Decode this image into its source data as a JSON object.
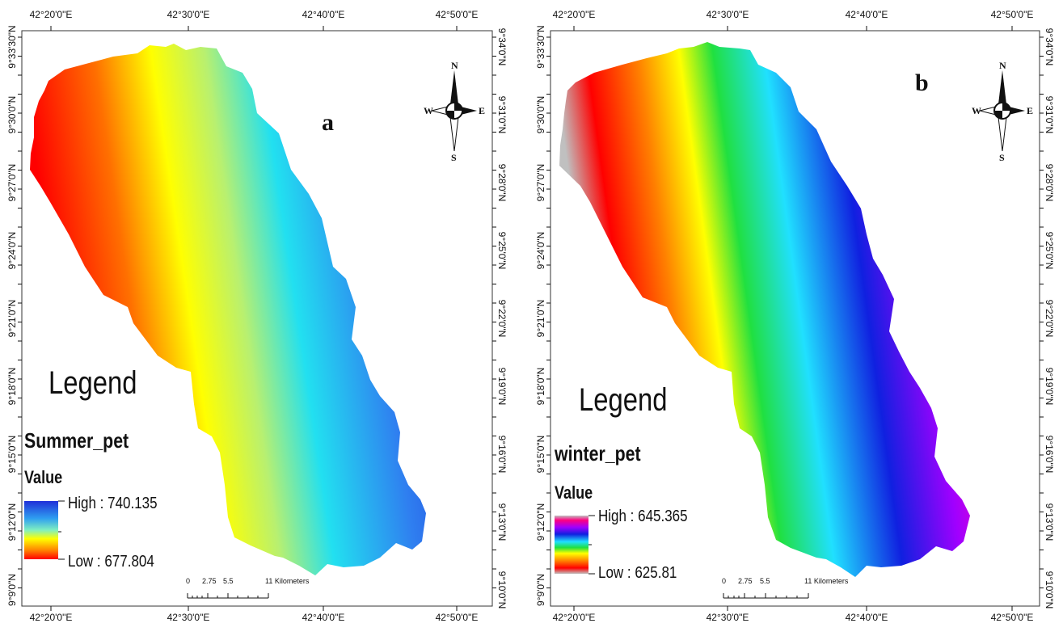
{
  "maps": [
    {
      "id": "a",
      "panel_letter": "a",
      "legend_title": "Legend",
      "layer_name": "Summer_pet",
      "value_label": "Value",
      "high_label": "High : 740.135",
      "low_label": "Low : 677.804",
      "ramp_colors": [
        "#1f2fd8",
        "#2f7ff0",
        "#22d8f0",
        "#b8f070",
        "#ffff00",
        "#ffa000",
        "#ff0000"
      ],
      "lon_ticks": [
        "42°20'0\"E",
        "42°30'0\"E",
        "42°40'0\"E",
        "42°50'0\"E"
      ],
      "lat_ticks_left": [
        "9°33'30\"N",
        "9°30'0\"N",
        "9°27'0\"N",
        "9°24'0\"N",
        "9°21'0\"N",
        "9°18'0\"N",
        "9°15'0\"N",
        "9°12'0\"N",
        "9°9'0\"N"
      ],
      "lat_ticks_right": [
        "9°34'0\"N",
        "9°31'0\"N",
        "9°28'0\"N",
        "9°25'0\"N",
        "9°22'0\"N",
        "9°19'0\"N",
        "9°16'0\"N",
        "9°13'0\"N",
        "9°10'0\"N"
      ],
      "scale_labels": [
        "0",
        "2.75",
        "5.5",
        "11 Kilometers"
      ],
      "compass": {
        "n": "N",
        "s": "S",
        "e": "E",
        "w": "W"
      }
    },
    {
      "id": "b",
      "panel_letter": "b",
      "legend_title": "Legend",
      "layer_name": "winter_pet",
      "value_label": "Value",
      "high_label": "High : 645.365",
      "low_label": "Low : 625.81",
      "ramp_colors": [
        "#c0c0c0",
        "#ff0080",
        "#a000ff",
        "#1020e0",
        "#20e0ff",
        "#20e040",
        "#ffff00",
        "#ff8000",
        "#ff0000",
        "#c0c0c0"
      ],
      "lon_ticks": [
        "42°20'0\"E",
        "42°30'0\"E",
        "42°40'0\"E",
        "42°50'0\"E"
      ],
      "lat_ticks_left": [
        "9°33'30\"N",
        "9°30'0\"N",
        "9°27'0\"N",
        "9°24'0\"N",
        "9°21'0\"N",
        "9°18'0\"N",
        "9°15'0\"N",
        "9°12'0\"N",
        "9°9'0\"N"
      ],
      "lat_ticks_right": [
        "9°34'0\"N",
        "9°31'0\"N",
        "9°28'0\"N",
        "9°25'0\"N",
        "9°22'0\"N",
        "9°19'0\"N",
        "9°16'0\"N",
        "9°13'0\"N",
        "9°10'0\"N"
      ],
      "scale_labels": [
        "0",
        "2.75",
        "5.5",
        "11 Kilometers"
      ],
      "compass": {
        "n": "N",
        "s": "S",
        "e": "E",
        "w": "W"
      }
    }
  ]
}
